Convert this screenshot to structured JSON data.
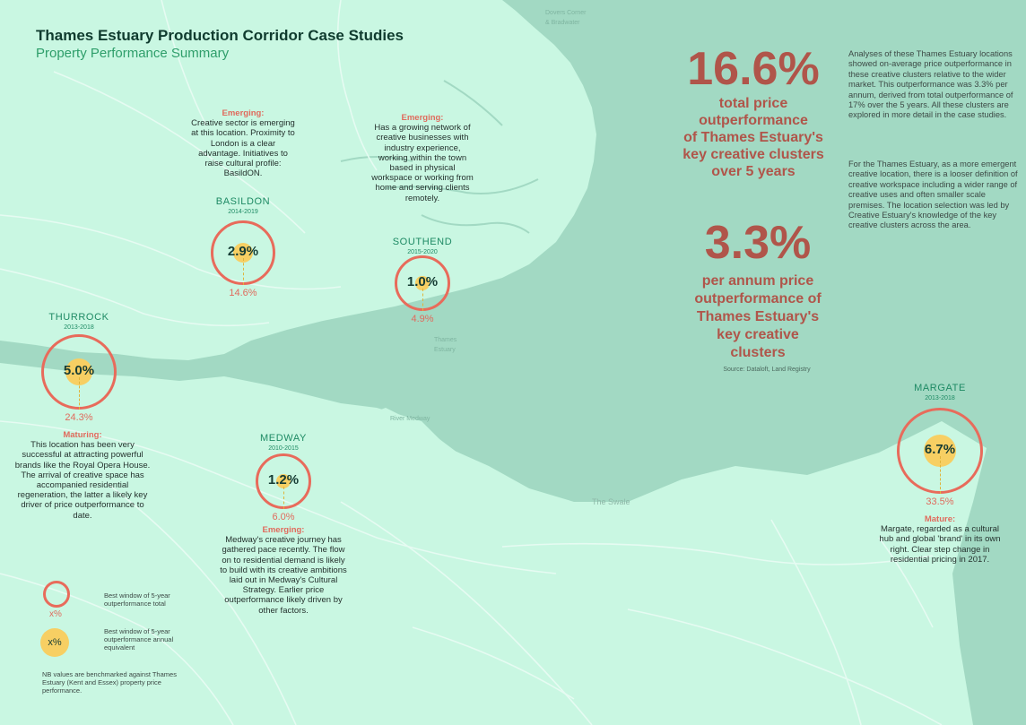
{
  "header": {
    "title": "Thames Estuary Production Corridor Case Studies",
    "subtitle": "Property Performance Summary"
  },
  "map_labels": {
    "thames_estuary": [
      "Thames",
      "Estuary"
    ],
    "river_medway": "River Medway",
    "the_swale": "The Swale",
    "top_label": [
      "Dovers Corner",
      "& Bradwater"
    ]
  },
  "sites": [
    {
      "id": "thurrock",
      "name": "THURROCK",
      "years": "2013-2018",
      "pa": "5.0%",
      "total": "24.3%",
      "pa_fraction": 0.05,
      "stage": "Maturing:",
      "text": "This location has been very successful at attracting powerful brands like the Royal Opera House. The arrival of creative space has accompanied residential regeneration, the latter a likely key driver of price outperformance to date."
    },
    {
      "id": "basildon",
      "name": "BASILDON",
      "years": "2014-2019",
      "pa": "2.9%",
      "total": "14.6%",
      "pa_fraction": 0.029,
      "stage": "Emerging:",
      "text": "Creative sector is emerging at this location. Proximity to London is a clear advantage. Initiatives to raise cultural profile: BasildON."
    },
    {
      "id": "southend",
      "name": "SOUTHEND",
      "years": "2015-2020",
      "pa": "1.0%",
      "total": "4.9%",
      "pa_fraction": 0.01,
      "stage": "Emerging:",
      "text": "Has a growing network of creative businesses with industry experience, working within the town based in physical workspace or working from home and serving clients remotely."
    },
    {
      "id": "medway",
      "name": "MEDWAY",
      "years": "2010-2015",
      "pa": "1.2%",
      "total": "6.0%",
      "pa_fraction": 0.012,
      "stage": "Emerging:",
      "text": "Medway's creative journey has gathered pace recently. The flow on to residential demand is likely to build with its creative ambitions laid out in Medway's Cultural Strategy. Earlier price outperformance likely driven by other factors."
    },
    {
      "id": "margate",
      "name": "MARGATE",
      "years": "2013-2018",
      "pa": "6.7%",
      "total": "33.5%",
      "pa_fraction": 0.067,
      "stage": "Mature:",
      "text": "Margate, regarded as a cultural hub and global 'brand' in its own right. Clear step change in residential pricing in 2017."
    }
  ],
  "headline": {
    "total_value": "16.6%",
    "total_lines": [
      "total price",
      "outperformance",
      "of Thames Estuary's",
      "key creative clusters",
      "over 5 years"
    ],
    "pa_value": "3.3%",
    "pa_lines": [
      "per annum price",
      "outperformance of",
      "Thames Estuary's",
      "key creative",
      "clusters"
    ],
    "source": "Source: Dataloft, Land Registry"
  },
  "analysis": {
    "para1": "Analyses of these Thames Estuary locations showed on-average price outperformance in these creative clusters relative to the wider market. This outperformance was 3.3% per annum, derived from total outperformance of 17% over the 5 years. All these clusters are explored in more detail in the case studies.",
    "para2": "For the Thames Estuary, as a more emergent creative location, there is a looser definition of creative workspace including a wider range of creative uses and often smaller scale premises. The location selection was led by Creative Estuary's knowledge of the key creative clusters across the area."
  },
  "legend": {
    "total_symbol": "x%",
    "total_text": "Best window of 5-year outperformance total",
    "pa_symbol": "x%",
    "pa_text": "Best window of 5-year outperformance annual equivalent",
    "note": "NB values are benchmarked against Thames Estuary (Kent and Essex) property price performance."
  },
  "colors": {
    "land": "#c9f7e2",
    "water": "#a2d9c3",
    "roads": "#e6fbf2",
    "ring": "#e86b5b",
    "dot": "#f7cf63",
    "accent_green": "#2e9e6a",
    "headline_red": "#b0554a"
  }
}
